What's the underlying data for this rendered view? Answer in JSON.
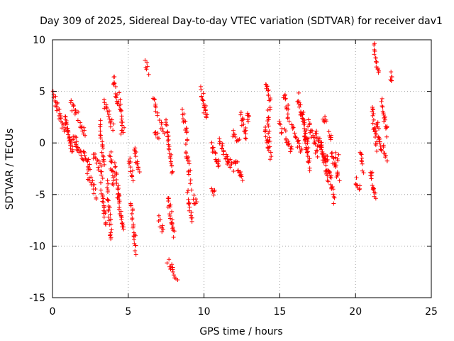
{
  "chart_data": {
    "type": "scatter",
    "title": "Day 309 of 2025, Sidereal Day-to-day VTEC variation (SDTVAR) for receiver dav1",
    "xlabel": "GPS time / hours",
    "ylabel": "SDTVAR / TECUs",
    "xlim": [
      0,
      25
    ],
    "ylim": [
      -15,
      10
    ],
    "x_ticks": [
      0,
      5,
      10,
      15,
      20,
      25
    ],
    "x_tick_labels": [
      "0",
      "5",
      "10",
      "15",
      "20",
      "25"
    ],
    "y_ticks": [
      -15,
      -10,
      -5,
      0,
      5,
      10
    ],
    "y_tick_labels": [
      "-15",
      "-10",
      "-5",
      "0",
      "5",
      "10"
    ],
    "grid": true,
    "marker": "+",
    "marker_color": "#ff0000",
    "series": [
      {
        "name": "dav1",
        "clusters": [
          {
            "x0": 0.0,
            "x1": 0.3,
            "y0": 5.0,
            "y1": 3.5
          },
          {
            "x0": 0.3,
            "x1": 0.8,
            "y0": 3.5,
            "y1": 1.0
          },
          {
            "x0": 0.8,
            "x1": 1.3,
            "y0": 2.5,
            "y1": -1.0
          },
          {
            "x0": 1.0,
            "x1": 1.6,
            "y0": 1.0,
            "y1": -0.5
          },
          {
            "x0": 1.2,
            "x1": 1.7,
            "y0": 3.8,
            "y1": 2.5
          },
          {
            "x0": 1.5,
            "x1": 2.0,
            "y0": 0.5,
            "y1": -1.5
          },
          {
            "x0": 1.8,
            "x1": 2.2,
            "y0": 1.8,
            "y1": 1.0
          },
          {
            "x0": 2.0,
            "x1": 2.5,
            "y0": -0.8,
            "y1": -2.5
          },
          {
            "x0": 2.3,
            "x1": 2.9,
            "y0": -3.0,
            "y1": -5.0
          },
          {
            "x0": 2.7,
            "x1": 3.3,
            "y0": -1.0,
            "y1": -3.0
          },
          {
            "x0": 3.1,
            "x1": 3.4,
            "y0": 2.0,
            "y1": -2.0
          },
          {
            "x0": 3.2,
            "x1": 3.5,
            "y0": -4.0,
            "y1": -8.0
          },
          {
            "x0": 3.4,
            "x1": 4.0,
            "y0": 4.0,
            "y1": 1.5
          },
          {
            "x0": 3.6,
            "x1": 3.9,
            "y0": -4.0,
            "y1": -9.5
          },
          {
            "x0": 3.8,
            "x1": 4.0,
            "y0": -1.0,
            "y1": -4.0
          },
          {
            "x0": 4.0,
            "x1": 4.3,
            "y0": 6.5,
            "y1": 4.0
          },
          {
            "x0": 4.1,
            "x1": 4.4,
            "y0": -2.0,
            "y1": -5.5
          },
          {
            "x0": 4.3,
            "x1": 4.7,
            "y0": -5.0,
            "y1": -8.5
          },
          {
            "x0": 4.4,
            "x1": 4.6,
            "y0": 4.6,
            "y1": 2.0
          },
          {
            "x0": 4.5,
            "x1": 4.7,
            "y0": 1.0,
            "y1": 1.5
          },
          {
            "x0": 5.0,
            "x1": 5.3,
            "y0": -1.5,
            "y1": -3.5
          },
          {
            "x0": 5.2,
            "x1": 5.5,
            "y0": -6.0,
            "y1": -10.5
          },
          {
            "x0": 5.4,
            "x1": 5.7,
            "y0": -0.5,
            "y1": -3.0
          },
          {
            "x0": 6.1,
            "x1": 6.3,
            "y0": 7.7,
            "y1": 7.0
          },
          {
            "x0": 6.7,
            "x1": 6.9,
            "y0": 4.5,
            "y1": 3.0
          },
          {
            "x0": 6.8,
            "x1": 7.0,
            "y0": 1.0,
            "y1": 0.5
          },
          {
            "x0": 7.0,
            "x1": 7.3,
            "y0": -7.5,
            "y1": -8.5
          },
          {
            "x0": 7.1,
            "x1": 7.4,
            "y0": 1.8,
            "y1": 1.0
          },
          {
            "x0": 7.5,
            "x1": 7.9,
            "y0": 2.0,
            "y1": -3.0
          },
          {
            "x0": 7.6,
            "x1": 8.0,
            "y0": -5.0,
            "y1": -9.0
          },
          {
            "x0": 7.6,
            "x1": 8.2,
            "y0": -11.5,
            "y1": -13.0
          },
          {
            "x0": 8.6,
            "x1": 8.9,
            "y0": 3.0,
            "y1": 0.5
          },
          {
            "x0": 8.8,
            "x1": 9.1,
            "y0": -0.5,
            "y1": -3.5
          },
          {
            "x0": 8.9,
            "x1": 9.2,
            "y0": -5.0,
            "y1": -7.5
          },
          {
            "x0": 9.2,
            "x1": 9.5,
            "y0": -5.0,
            "y1": -6.0
          },
          {
            "x0": 9.8,
            "x1": 10.1,
            "y0": 5.2,
            "y1": 3.0
          },
          {
            "x0": 10.0,
            "x1": 10.2,
            "y0": 3.5,
            "y1": 2.5
          },
          {
            "x0": 10.5,
            "x1": 10.7,
            "y0": -4.5,
            "y1": -5.0
          },
          {
            "x0": 10.5,
            "x1": 11.0,
            "y0": 0.0,
            "y1": -2.5
          },
          {
            "x0": 11.0,
            "x1": 11.6,
            "y0": 0.5,
            "y1": -2.0
          },
          {
            "x0": 11.5,
            "x1": 11.9,
            "y0": -1.5,
            "y1": -2.5
          },
          {
            "x0": 11.9,
            "x1": 12.3,
            "y0": 1.0,
            "y1": 0.2
          },
          {
            "x0": 12.0,
            "x1": 12.5,
            "y0": -1.5,
            "y1": -3.5
          },
          {
            "x0": 12.4,
            "x1": 12.8,
            "y0": 2.8,
            "y1": 0.5
          },
          {
            "x0": 12.8,
            "x1": 13.0,
            "y0": 2.8,
            "y1": 2.2
          },
          {
            "x0": 14.0,
            "x1": 14.4,
            "y0": 1.5,
            "y1": -1.5
          },
          {
            "x0": 14.1,
            "x1": 14.4,
            "y0": 6.0,
            "y1": 3.5
          },
          {
            "x0": 14.2,
            "x1": 14.3,
            "y0": 3.0,
            "y1": 0.5
          },
          {
            "x0": 15.0,
            "x1": 15.1,
            "y0": 2.0,
            "y1": 1.0
          },
          {
            "x0": 15.3,
            "x1": 15.5,
            "y0": 4.7,
            "y1": 3.5
          },
          {
            "x0": 15.5,
            "x1": 15.6,
            "y0": 3.5,
            "y1": 2.5
          },
          {
            "x0": 15.3,
            "x1": 15.8,
            "y0": 1.0,
            "y1": -0.8
          },
          {
            "x0": 15.8,
            "x1": 16.4,
            "y0": 1.5,
            "y1": -1.0
          },
          {
            "x0": 16.2,
            "x1": 16.6,
            "y0": 4.5,
            "y1": 2.0
          },
          {
            "x0": 16.4,
            "x1": 16.9,
            "y0": 3.0,
            "y1": -0.5
          },
          {
            "x0": 16.6,
            "x1": 17.0,
            "y0": 1.0,
            "y1": -2.5
          },
          {
            "x0": 16.9,
            "x1": 17.5,
            "y0": 2.0,
            "y1": -1.0
          },
          {
            "x0": 17.3,
            "x1": 17.8,
            "y0": 1.0,
            "y1": -0.5
          },
          {
            "x0": 17.6,
            "x1": 17.9,
            "y0": 0.2,
            "y1": -1.5
          },
          {
            "x0": 17.8,
            "x1": 18.2,
            "y0": -0.5,
            "y1": -3.5
          },
          {
            "x0": 17.9,
            "x1": 18.1,
            "y0": 2.6,
            "y1": 1.8
          },
          {
            "x0": 18.0,
            "x1": 18.6,
            "y0": -1.0,
            "y1": -5.5
          },
          {
            "x0": 18.2,
            "x1": 18.4,
            "y0": 1.0,
            "y1": 0.3
          },
          {
            "x0": 18.4,
            "x1": 18.9,
            "y0": -1.0,
            "y1": -3.5
          },
          {
            "x0": 18.6,
            "x1": 18.9,
            "y0": -1.0,
            "y1": -1.5
          },
          {
            "x0": 20.0,
            "x1": 20.3,
            "y0": -3.5,
            "y1": -4.5
          },
          {
            "x0": 20.3,
            "x1": 20.5,
            "y0": -1.0,
            "y1": -2.5
          },
          {
            "x0": 21.0,
            "x1": 21.3,
            "y0": -2.5,
            "y1": -5.5
          },
          {
            "x0": 21.1,
            "x1": 21.4,
            "y0": 3.5,
            "y1": -0.5
          },
          {
            "x0": 21.2,
            "x1": 21.5,
            "y0": 9.5,
            "y1": 6.5
          },
          {
            "x0": 21.4,
            "x1": 21.7,
            "y0": 2.0,
            "y1": -1.0
          },
          {
            "x0": 21.7,
            "x1": 22.1,
            "y0": 4.0,
            "y1": 1.0
          },
          {
            "x0": 21.8,
            "x1": 22.1,
            "y0": -0.5,
            "y1": -1.5
          },
          {
            "x0": 22.3,
            "x1": 22.4,
            "y0": 6.5,
            "y1": 6.3
          }
        ]
      }
    ]
  }
}
